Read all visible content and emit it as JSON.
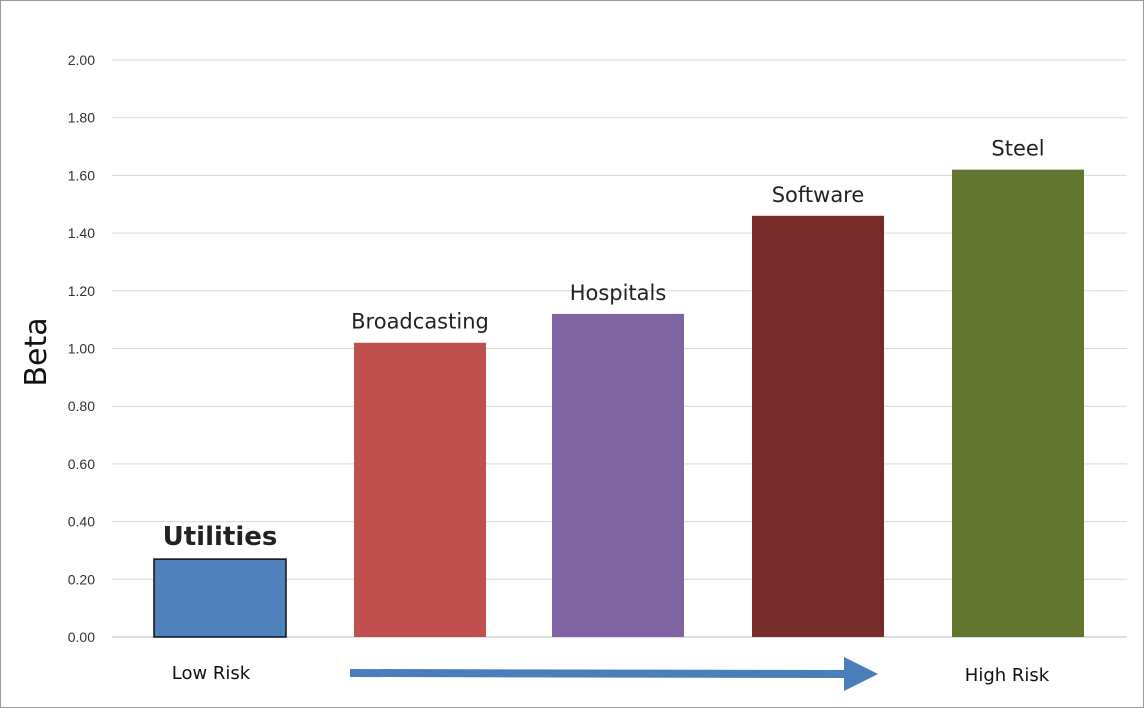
{
  "chart_data": {
    "type": "bar",
    "title": "",
    "xlabel": "",
    "ylabel": "Beta",
    "ylim": [
      0,
      2
    ],
    "yticks": [
      "0.00",
      "0.20",
      "0.40",
      "0.60",
      "0.80",
      "1.00",
      "1.20",
      "1.40",
      "1.60",
      "1.80",
      "2.00"
    ],
    "grid": true,
    "categories": [
      "Utilities",
      "Broadcasting",
      "Hospitals",
      "Software",
      "Steel"
    ],
    "values": [
      0.27,
      1.02,
      1.12,
      1.46,
      1.62
    ],
    "colors": [
      "#4f81bd",
      "#c0504d",
      "#8064a2",
      "#772c2a",
      "#62762f"
    ],
    "annotations": {
      "low_risk": "Low Risk",
      "high_risk": "High Risk",
      "arrow_color": "#4a7ebb"
    }
  }
}
